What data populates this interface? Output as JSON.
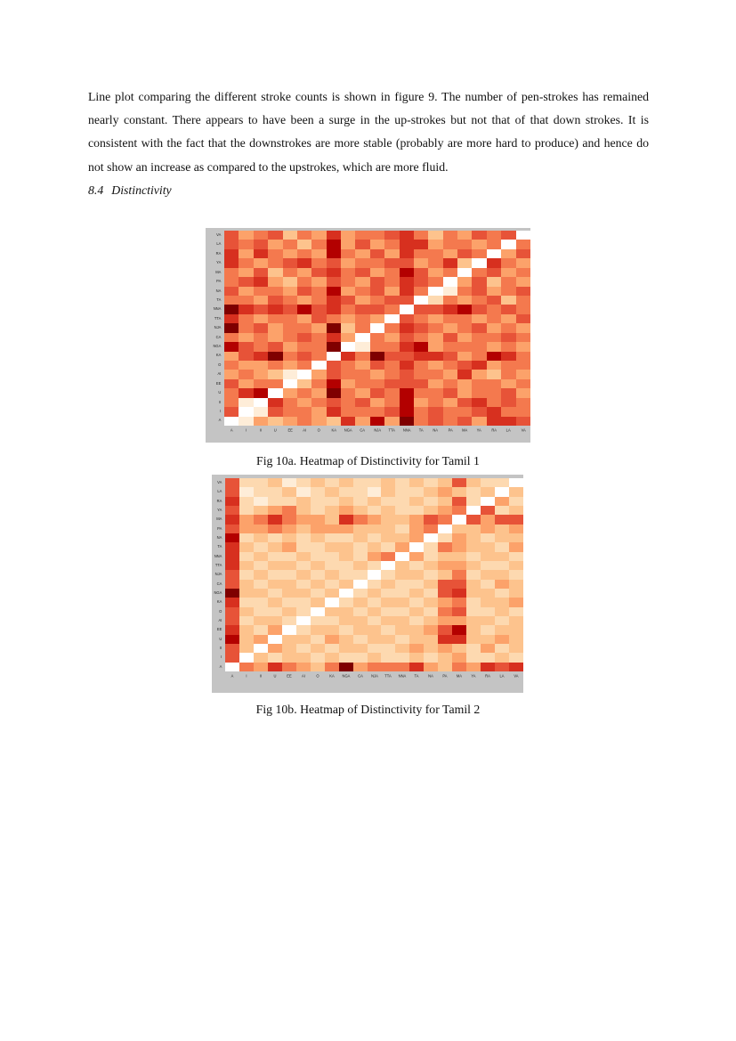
{
  "body": {
    "paragraph": "Line plot comparing the different stroke counts is shown in figure 9. The number of pen-strokes has remained nearly constant. There appears to have been a surge in the up-strokes but not that of that down strokes. It is consistent with the fact that the downstrokes are more stable (probably are more hard to produce) and hence do not show an increase as compared to the upstrokes, which are more fluid.",
    "section_number": "8.4",
    "section_title": "Distinctivity"
  },
  "figures": [
    {
      "caption": "Fig 10a. Heatmap of Distinctivity for Tamil 1"
    },
    {
      "caption": "Fig 10b. Heatmap of Distinctivity for Tamil 2"
    }
  ],
  "panel_color": "#c4c4c4",
  "palette": [
    "#ffffff",
    "#feedd8",
    "#fdd9b0",
    "#fdc38d",
    "#fca26a",
    "#f4794e",
    "#e75338",
    "#d7301f",
    "#b30000",
    "#7f0000"
  ],
  "chart_data": [
    {
      "type": "heatmap",
      "title": "Fig 10a. Heatmap of Distinctivity for Tamil 1",
      "x_labels": [
        "A",
        "I",
        "II",
        "U",
        "EE",
        "AI",
        "O",
        "KA",
        "NGA",
        "CA",
        "NJA",
        "TTA",
        "NNA",
        "TA",
        "NA",
        "PA",
        "MA",
        "YA",
        "RA",
        "LA",
        "VA"
      ],
      "y_labels": [
        "VA",
        "LA",
        "RA",
        "YA",
        "MA",
        "PA",
        "NA",
        "TA",
        "NNA",
        "TTA",
        "NJA",
        "CA",
        "NGA",
        "KA",
        "O",
        "AI",
        "EE",
        "U",
        "II",
        "I",
        "A"
      ],
      "value_scale": "digits 0-9; 0 = white (identical letter pair on diagonal), 9 = darkest red (most distinct); estimated from pixel colors, no colorbar shown",
      "grid": "off",
      "legend": "none",
      "matrix": [
        "645635474556753546560",
        "656453584645774554505",
        "747545485464755465046",
        "754567564556645730754",
        "546354675645864505645",
        "567435465465765046354",
        "645546584564750156456",
        "554654576456602545635",
        "976768675665066786565",
        "754554654540654554546",
        "956455493505765456454",
        "545456574054654645565",
        "865645590155784555454",
        "467956507596677645875",
        "544545065465754567455",
        "454310465545655474354",
        "645503584556664545545",
        "578045495465855645564",
        "510754565645845467565",
        "601655475556856556755",
        "014345437484956564776"
      ]
    },
    {
      "type": "heatmap",
      "title": "Fig 10b. Heatmap of Distinctivity for Tamil 2",
      "x_labels": [
        "A",
        "I",
        "II",
        "U",
        "EE",
        "AI",
        "O",
        "KA",
        "NGA",
        "CA",
        "NJA",
        "TTA",
        "NNA",
        "TA",
        "NA",
        "PA",
        "MA",
        "YA",
        "RA",
        "LA",
        "VA"
      ],
      "y_labels": [
        "VA",
        "LA",
        "RA",
        "YA",
        "MA",
        "PA",
        "NA",
        "TA",
        "NNA",
        "TTA",
        "NJA",
        "CA",
        "NGA",
        "KA",
        "O",
        "AI",
        "EE",
        "U",
        "II",
        "I",
        "A"
      ],
      "value_scale": "digits 0-9; 0 = white (identical letter pair on diagonal), 9 = darkest red (most distinct); estimated from pixel colors, no colorbar shown",
      "grid": "off",
      "legend": "none",
      "matrix": [
        "622312323223232363220",
        "612231232213223432303",
        "721223223232232362042",
        "623453234323223450623",
        "745754437543346506466",
        "644543444333245033434",
        "823232322323340243233",
        "732342233232402543324",
        "723223223245042332332",
        "732332322320323443223",
        "623223232202332352332",
        "632332323023223663243",
        "933233230232232673323",
        "722322302323323452334",
        "632232033232232562232",
        "623320223323323443323",
        "732402332332334683233",
        "834033243233233773343",
        "630432323322343432423",
        "603233232232232342232",
        "054754359455574354767"
      ]
    }
  ]
}
